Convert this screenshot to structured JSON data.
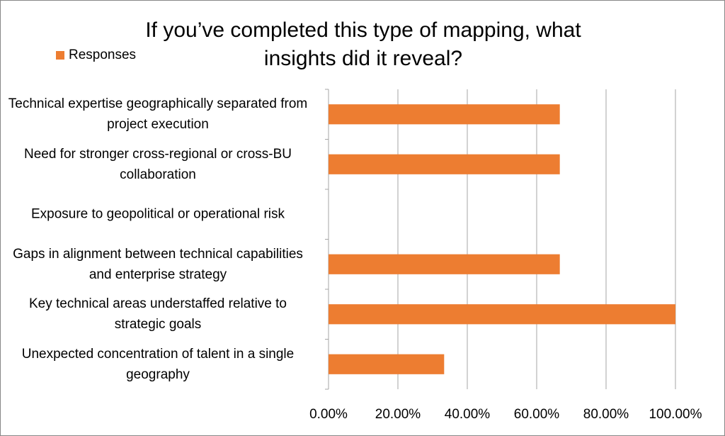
{
  "chart_data": {
    "type": "bar",
    "orientation": "horizontal",
    "title": "If you’ve completed this type of mapping, what insights did it reveal?",
    "categories": [
      "Technical expertise geographically separated from project execution",
      "Need for stronger cross-regional or cross-BU collaboration",
      "Exposure to geopolitical or operational risk",
      "Gaps in alignment between technical capabilities and enterprise strategy",
      "Key technical areas understaffed relative to strategic goals",
      "Unexpected concentration of talent in a single geography"
    ],
    "series": [
      {
        "name": "Responses",
        "color": "#ed7d31",
        "values": [
          66.67,
          66.67,
          0,
          66.67,
          100,
          33.33
        ]
      }
    ],
    "xlim": [
      0,
      100
    ],
    "xticks": [
      {
        "value": 0,
        "label": "0.00%"
      },
      {
        "value": 20,
        "label": "20.00%"
      },
      {
        "value": 40,
        "label": "40.00%"
      },
      {
        "value": 60,
        "label": "60.00%"
      },
      {
        "value": 80,
        "label": "80.00%"
      },
      {
        "value": 100,
        "label": "100.00%"
      }
    ],
    "grid": true,
    "legend": "top-left"
  }
}
